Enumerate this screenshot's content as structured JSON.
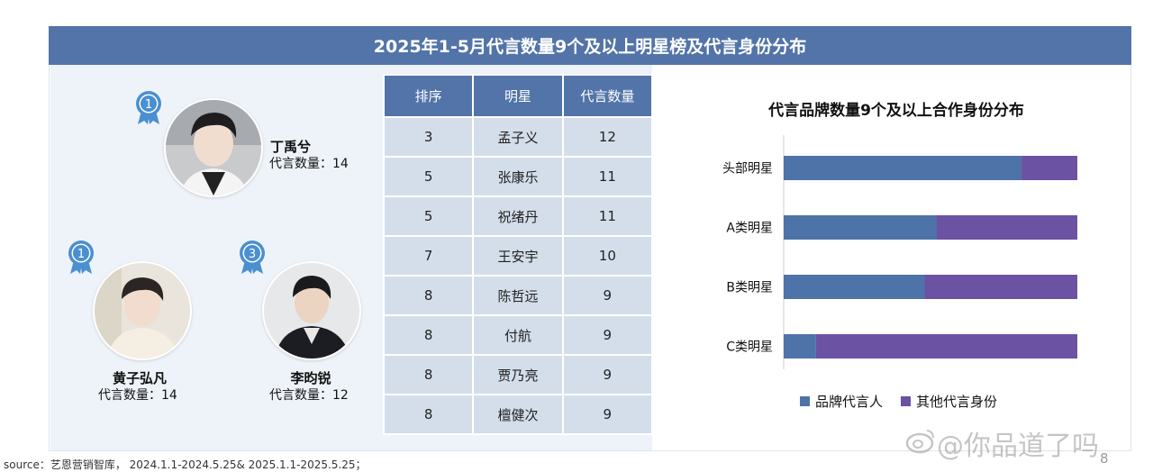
{
  "header": {
    "title": "2025年1-5月代言数量9个及以上明星榜及代言身份分布"
  },
  "celebrities": [
    {
      "name": "丁禹兮",
      "count_label": "代言数量：14",
      "medal": "1"
    },
    {
      "name": "黄子弘凡",
      "count_label": "代言数量：14",
      "medal": "1"
    },
    {
      "name": "李昀锐",
      "count_label": "代言数量：12",
      "medal": "3"
    }
  ],
  "table": {
    "headers": [
      "排序",
      "明星",
      "代言数量"
    ],
    "rows": [
      [
        "3",
        "孟子义",
        "12"
      ],
      [
        "5",
        "张康乐",
        "11"
      ],
      [
        "5",
        "祝绪丹",
        "11"
      ],
      [
        "7",
        "王安宇",
        "10"
      ],
      [
        "8",
        "陈哲远",
        "9"
      ],
      [
        "8",
        "付航",
        "9"
      ],
      [
        "8",
        "贾乃亮",
        "9"
      ],
      [
        "8",
        "檀健次",
        "9"
      ]
    ]
  },
  "chart_data": {
    "type": "bar",
    "orientation": "horizontal",
    "stacked": true,
    "percent": true,
    "title": "代言品牌数量9个及以上合作身份分布",
    "categories": [
      "头部明星",
      "A类明星",
      "B类明星",
      "C类明星"
    ],
    "series": [
      {
        "name": "品牌代言人",
        "values": [
          81,
          52,
          48,
          11
        ],
        "color": "#4e73a8"
      },
      {
        "name": "其他代言身份",
        "values": [
          19,
          48,
          52,
          89
        ],
        "color": "#6b52a3"
      }
    ],
    "xlim": [
      0,
      100
    ],
    "grid": false,
    "legend": "bottom"
  },
  "footer": {
    "source": "source：艺恩营销智库，  2024.1.1-2024.5.25& 2025.1.1-2025.5.25；",
    "page": "8",
    "watermark": "@你品道了吗"
  },
  "colors": {
    "accent": "#5274a8",
    "cell": "#d4deeb",
    "panel": "#eef3f9"
  }
}
